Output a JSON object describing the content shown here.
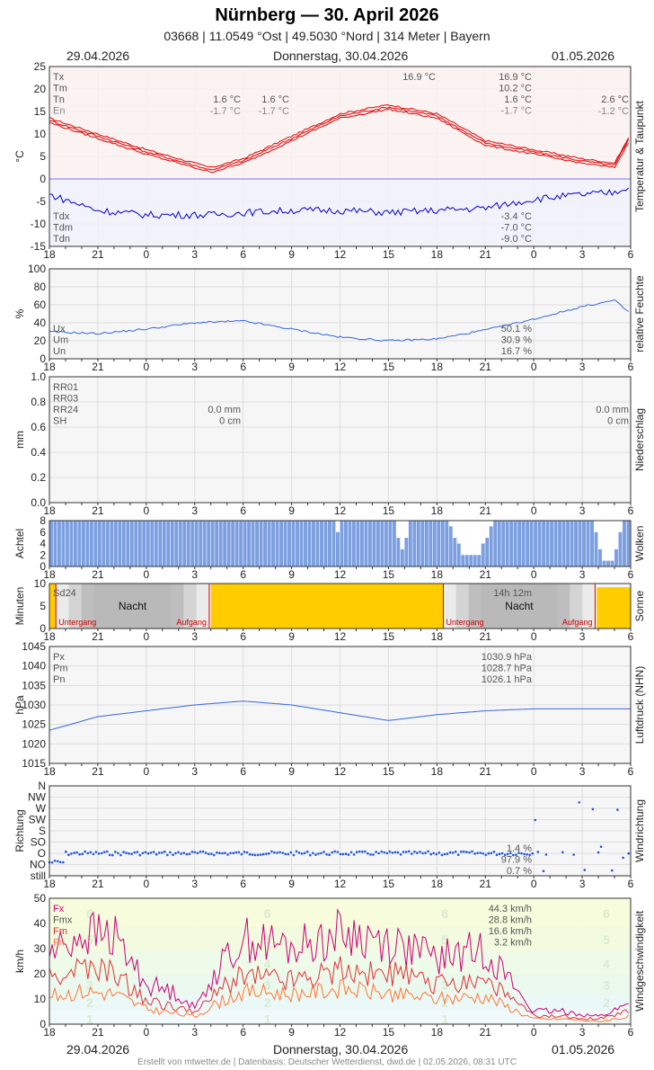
{
  "header": {
    "title": "Nürnberg  —  30. April 2026",
    "subtitle": "03668  |  11.0549 °Ost  |  49.5030 °Nord  |  314 Meter  |  Bayern",
    "date_left": "29.04.2026",
    "date_center": "Donnerstag, 30.04.2026",
    "date_right": "01.05.2026",
    "footer": "Erstellt von mtwetter.de | Datenbasis: Deutscher Wetterdienst, dwd.de | 02.05.2026, 08:31 UTC"
  },
  "x_ticks": [
    "18",
    "21",
    "0",
    "3",
    "6",
    "9",
    "12",
    "15",
    "18",
    "21",
    "0",
    "3",
    "6"
  ],
  "chart_data": [
    {
      "type": "line",
      "title": "Temperatur & Taupunkt",
      "ylabel": "°C",
      "ylim": [
        -15,
        25
      ],
      "yticks": [
        "25",
        "20",
        "15",
        "10",
        "5",
        "0",
        "-5",
        "-10",
        "-15"
      ],
      "x_hours": [
        -6,
        -3,
        0,
        3,
        4,
        6,
        9,
        12,
        15,
        18,
        21,
        24,
        27,
        29,
        30
      ],
      "series": [
        {
          "name": "Tx",
          "color": "#dd0000",
          "values": [
            13.5,
            10,
            6.5,
            3.5,
            2.5,
            4.5,
            9.5,
            14.5,
            16.5,
            14.5,
            8.5,
            6.5,
            4.5,
            3.5,
            10
          ]
        },
        {
          "name": "Tm",
          "color": "#dd0000",
          "values": [
            13,
            9.5,
            6,
            3,
            2,
            4,
            9,
            14,
            16,
            14,
            8,
            6,
            4,
            3,
            9.5
          ]
        },
        {
          "name": "Tn",
          "color": "#dd0000",
          "values": [
            12.5,
            9,
            5.5,
            2.5,
            1.5,
            3.5,
            8.5,
            13.5,
            15.5,
            13.5,
            7.5,
            5.5,
            3.5,
            2.5,
            9
          ]
        },
        {
          "name": "Tdx",
          "color": "#0000cc",
          "values": [
            -3.5,
            -7,
            -8,
            -8,
            -8,
            -7.5,
            -7,
            -7,
            -7.5,
            -7,
            -6.5,
            -4.5,
            -3.5,
            -3,
            -1.5
          ]
        }
      ],
      "left_labels": [
        "Tx",
        "Tm",
        "Tn",
        "En"
      ],
      "left_labels_2": [
        "Tdx",
        "Tdm",
        "Tdn"
      ],
      "day1_tn": "1.6 °C",
      "day1_tn_2": "1.6 °C",
      "day1_en": "-1.7 °C",
      "day1_en_2": "-1.7 °C",
      "peak_label": "16.9 °C",
      "summary": [
        "16.9 °C",
        "10.2 °C",
        "1.6 °C",
        "-1.7 °C"
      ],
      "summary_dew": [
        "-3.4 °C",
        "-7.0 °C",
        "-9.0 °C"
      ],
      "right_tn": "2.6 °C",
      "right_en": "-1.2 °C"
    },
    {
      "type": "line",
      "title": "relative Feuchte",
      "ylabel": "%",
      "ylim": [
        0,
        100
      ],
      "yticks": [
        "100",
        "80",
        "60",
        "40",
        "20",
        "0"
      ],
      "x_hours": [
        -6,
        -3,
        0,
        3,
        6,
        9,
        12,
        15,
        18,
        21,
        24,
        27,
        29,
        30
      ],
      "series": [
        {
          "name": "Um",
          "color": "#3366dd",
          "values": [
            30,
            28,
            33,
            40,
            42,
            33,
            24,
            20,
            22,
            32,
            44,
            58,
            65,
            50
          ]
        }
      ],
      "left_labels": [
        "Ux",
        "Um",
        "Un"
      ],
      "summary": [
        "50.1 %",
        "30.9 %",
        "16.7 %"
      ]
    },
    {
      "type": "bar",
      "title": "Niederschlag",
      "ylabel": "mm",
      "ylim": [
        0,
        1.0
      ],
      "yticks": [
        "1.0",
        "0.8",
        "0.6",
        "0.4",
        "0.2",
        "0.0"
      ],
      "left_labels": [
        "RR01",
        "RR03",
        "RR24",
        "SH"
      ],
      "day1_values": [
        "0.0 mm",
        "0 cm"
      ],
      "day2_values": [
        "0.0 mm",
        "0 cm"
      ]
    },
    {
      "type": "bar",
      "title": "Wolken",
      "ylabel": "Achtel",
      "ylim": [
        0,
        8
      ],
      "yticks": [
        "8",
        "6",
        "4",
        "2",
        "0"
      ],
      "clear_periods": [
        {
          "from": 11.5,
          "to": 12.0,
          "min": 6
        },
        {
          "from": 15.3,
          "to": 16.2,
          "min": 3
        },
        {
          "from": 18.5,
          "to": 21.5,
          "min": 2
        },
        {
          "from": 27.5,
          "to": 29.5,
          "min": 1
        }
      ]
    },
    {
      "type": "bar",
      "title": "Sonne",
      "ylabel": "Minuten",
      "ylim": [
        0,
        10
      ],
      "yticks": [
        "10",
        "5",
        "0"
      ],
      "left_label": "Sd24",
      "night_label": "Nacht",
      "sunset_label": "Untergang",
      "sunrise_label": "Aufgang",
      "duration_label": "14h 12m",
      "sunset_hours": [
        -5.6,
        18.4
      ],
      "sunrise_hours": [
        3.9,
        27.8
      ]
    },
    {
      "type": "line",
      "title": "Luftdruck (NHN)",
      "ylabel": "hPa",
      "ylim": [
        1015,
        1045
      ],
      "yticks": [
        "1045",
        "1040",
        "1035",
        "1030",
        "1025",
        "1020",
        "1015"
      ],
      "x_hours": [
        -6,
        -3,
        0,
        3,
        6,
        9,
        12,
        15,
        18,
        21,
        24,
        27,
        30
      ],
      "series": [
        {
          "name": "Pm",
          "color": "#3366dd",
          "values": [
            1023.5,
            1027,
            1028.5,
            1030,
            1031,
            1030,
            1028,
            1026,
            1027.5,
            1028.5,
            1029,
            1029,
            1029
          ]
        }
      ],
      "left_labels": [
        "Px",
        "Pm",
        "Pn"
      ],
      "summary": [
        "1030.9 hPa",
        "1028.7 hPa",
        "1026.1 hPa"
      ]
    },
    {
      "type": "scatter",
      "title": "Windrichtung",
      "ylabel": "Richtung",
      "yticks": [
        "N",
        "NW",
        "W",
        "SW",
        "S",
        "SO",
        "O",
        "NO",
        "still"
      ],
      "summary": [
        "1.4 %",
        "97.9 %",
        "0.7 %"
      ]
    },
    {
      "type": "line",
      "title": "Windgeschwindigkeit",
      "ylabel": "km/h",
      "ylim": [
        0,
        50
      ],
      "yticks": [
        "50",
        "40",
        "30",
        "20",
        "10",
        "0"
      ],
      "x_hours": [
        -6,
        -4,
        -2,
        0,
        2,
        3,
        4,
        6,
        9,
        12,
        15,
        18,
        21,
        24,
        26,
        28,
        30
      ],
      "series": [
        {
          "name": "Fx",
          "color": "#cc0077",
          "values": [
            28,
            36,
            35,
            16,
            12,
            6,
            18,
            34,
            30,
            36,
            33,
            26,
            30,
            5,
            5,
            3,
            8
          ]
        },
        {
          "name": "Fmx",
          "color": "#dd3333",
          "values": [
            18,
            22,
            20,
            9,
            7,
            4,
            11,
            20,
            18,
            22,
            20,
            16,
            18,
            3,
            3,
            2,
            5
          ]
        },
        {
          "name": "Fm",
          "color": "#ff7733",
          "values": [
            11,
            13,
            12,
            6,
            4,
            3,
            7,
            13,
            12,
            14,
            12,
            10,
            11,
            2,
            2,
            1,
            3
          ]
        }
      ],
      "left_labels": [
        "Fx",
        "Fmx",
        "Fm",
        "Fn"
      ],
      "summary": [
        "44.3 km/h",
        "28.8 km/h",
        "16.6 km/h",
        "3.2 km/h"
      ],
      "bft_labels": [
        "1",
        "2",
        "3",
        "4",
        "5",
        "6"
      ]
    }
  ]
}
